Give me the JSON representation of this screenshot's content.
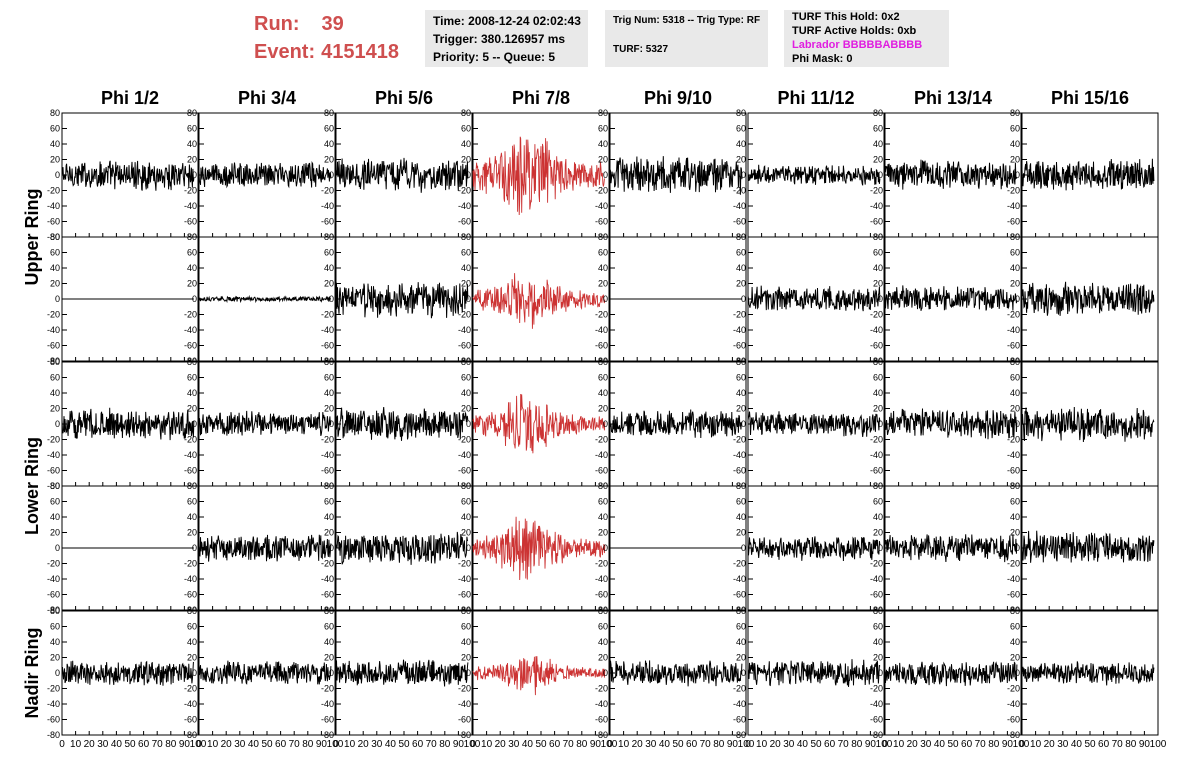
{
  "header": {
    "run_label": "Run:",
    "run_value": "39",
    "event_label": "Event:",
    "event_value": "4151418",
    "accent_color": "#cf4f4f"
  },
  "info_time": {
    "time": "Time: 2008-12-24 02:02:43",
    "trigger": "Trigger: 380.126957 ms",
    "priority": "Priority: 5 -- Queue: 5"
  },
  "info_trig": {
    "trig": "Trig Num: 5318 -- Trig Type: RF",
    "turf": "TURF: 5327"
  },
  "info_turf": {
    "this_hold": "TURF This Hold: 0x2",
    "active_holds": "TURF Active Holds: 0xb",
    "labrador": "Labrador BBBBBABBBB",
    "labrador_color": "#e01ee0",
    "phi_mask": "Phi Mask: 0"
  },
  "chart_data": {
    "type": "line",
    "columns": [
      "Phi 1/2",
      "Phi 3/4",
      "Phi 5/6",
      "Phi 7/8",
      "Phi 9/10",
      "Phi 11/12",
      "Phi 13/14",
      "Phi 15/16"
    ],
    "ring_labels": [
      "Upper Ring",
      "Lower Ring",
      "Nadir Ring"
    ],
    "rows_per_ring": [
      2,
      2,
      1
    ],
    "ylim": [
      -80,
      80
    ],
    "yticks": [
      -80,
      -60,
      -40,
      -20,
      0,
      20,
      40,
      60,
      80
    ],
    "xlim": [
      0,
      100
    ],
    "xticks": [
      0,
      10,
      20,
      30,
      40,
      50,
      60,
      70,
      80,
      90,
      100
    ],
    "highlight_column": 3,
    "highlight_color": "#cc3333",
    "trace_color": "#000000",
    "approx_amplitude": [
      [
        18,
        15,
        20,
        45,
        22,
        12,
        17,
        19
      ],
      [
        0,
        3,
        22,
        28,
        0,
        15,
        15,
        20
      ],
      [
        18,
        15,
        20,
        30,
        16,
        14,
        18,
        20
      ],
      [
        0,
        16,
        20,
        32,
        0,
        14,
        16,
        20
      ],
      [
        15,
        14,
        16,
        20,
        15,
        16,
        15,
        14
      ]
    ]
  }
}
